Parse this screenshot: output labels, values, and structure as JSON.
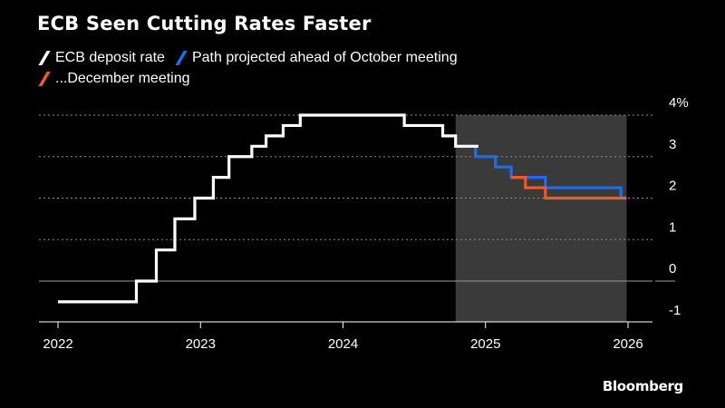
{
  "title": "ECB Seen Cutting Rates Faster",
  "colors": {
    "background": "#000000",
    "deposit": "#ffffff",
    "october": "#1e6cf0",
    "december": "#f05a28",
    "shade": "#3a3a3a"
  },
  "legend": [
    {
      "label": "ECB deposit rate",
      "color": "#ffffff"
    },
    {
      "label": "Path projected ahead of October meeting",
      "color": "#1e6cf0"
    },
    {
      "label": "...December meeting",
      "color": "#f05a28"
    }
  ],
  "credit": "Bloomberg",
  "chart_data": {
    "type": "line",
    "title": "ECB Seen Cutting Rates Faster",
    "x_range": [
      2021.95,
      2026.3
    ],
    "y_range": [
      -1,
      4
    ],
    "x_ticks": [
      {
        "value": 2022,
        "label": "2022"
      },
      {
        "value": 2023,
        "label": "2023"
      },
      {
        "value": 2024,
        "label": "2024"
      },
      {
        "value": 2025,
        "label": "2025"
      },
      {
        "value": 2026,
        "label": "2026"
      }
    ],
    "y_ticks": [
      {
        "value": 4,
        "label": "4%"
      },
      {
        "value": 3,
        "label": "3"
      },
      {
        "value": 2,
        "label": "2"
      },
      {
        "value": 1,
        "label": "1"
      },
      {
        "value": 0,
        "label": "0"
      },
      {
        "value": -1,
        "label": "-1"
      }
    ],
    "shaded_region": {
      "from": 2024.79,
      "to": 2025.99
    },
    "series": [
      {
        "name": "ECB deposit rate",
        "color": "#ffffff",
        "step": true,
        "points": [
          [
            2022.0,
            -0.5
          ],
          [
            2022.55,
            0.0
          ],
          [
            2022.69,
            0.75
          ],
          [
            2022.82,
            1.5
          ],
          [
            2022.96,
            2.0
          ],
          [
            2023.09,
            2.5
          ],
          [
            2023.2,
            3.0
          ],
          [
            2023.36,
            3.25
          ],
          [
            2023.46,
            3.5
          ],
          [
            2023.58,
            3.75
          ],
          [
            2023.7,
            4.0
          ],
          [
            2024.43,
            3.75
          ],
          [
            2024.7,
            3.5
          ],
          [
            2024.79,
            3.25
          ],
          [
            2024.95,
            3.25
          ]
        ]
      },
      {
        "name": "Path projected ahead of October meeting",
        "color": "#1e6cf0",
        "step": true,
        "points": [
          [
            2024.79,
            3.25
          ],
          [
            2024.93,
            3.0
          ],
          [
            2025.07,
            2.75
          ],
          [
            2025.18,
            2.5
          ],
          [
            2025.42,
            2.25
          ],
          [
            2025.95,
            2.0
          ],
          [
            2025.99,
            2.0
          ]
        ]
      },
      {
        "name": "...December meeting",
        "color": "#f05a28",
        "step": true,
        "points": [
          [
            2025.18,
            2.5
          ],
          [
            2025.28,
            2.25
          ],
          [
            2025.42,
            2.0
          ],
          [
            2025.99,
            2.0
          ]
        ]
      }
    ]
  }
}
